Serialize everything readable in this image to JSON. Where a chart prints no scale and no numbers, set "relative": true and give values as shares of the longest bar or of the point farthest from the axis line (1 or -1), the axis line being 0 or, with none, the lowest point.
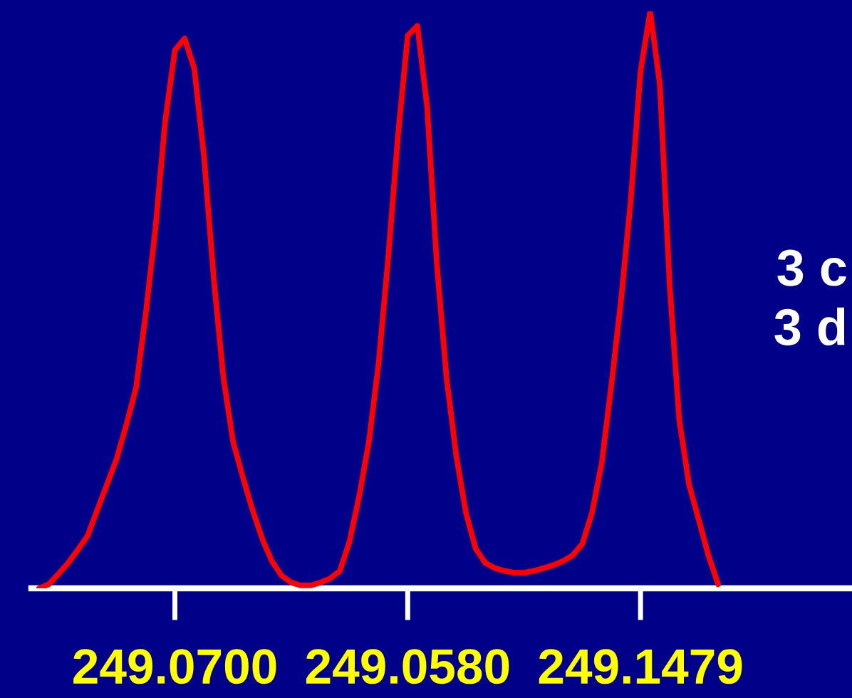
{
  "chart_data": {
    "type": "line",
    "relative": true,
    "categories": [
      null,
      null,
      null,
      null,
      null,
      null,
      null,
      null,
      null,
      null,
      null,
      null,
      null,
      null,
      "249.0700",
      null,
      null,
      null,
      null,
      null,
      null,
      null,
      null,
      null,
      null,
      null,
      null,
      null,
      null,
      null,
      null,
      null,
      null,
      null,
      null,
      null,
      null,
      null,
      "249.0580",
      null,
      null,
      null,
      null,
      null,
      null,
      null,
      null,
      null,
      null,
      null,
      null,
      null,
      null,
      null,
      null,
      null,
      null,
      null,
      null,
      null,
      null,
      null,
      "249.1479",
      null,
      null,
      null,
      null,
      null,
      null,
      null,
      null,
      null,
      null,
      null,
      null,
      null,
      null,
      null,
      null,
      null,
      null,
      null,
      null,
      null
    ],
    "series": [
      {
        "color": "#ff0000",
        "values": [
          0,
          0.007,
          0.025,
          0.044,
          0.067,
          0.091,
          0.136,
          0.18,
          0.225,
          0.284,
          0.348,
          0.477,
          0.625,
          0.81,
          0.933,
          0.953,
          0.901,
          0.748,
          0.538,
          0.365,
          0.254,
          0.193,
          0.136,
          0.086,
          0.047,
          0.022,
          0.01,
          0.005,
          0.005,
          0.01,
          0.017,
          0.03,
          0.081,
          0.16,
          0.254,
          0.39,
          0.575,
          0.785,
          0.958,
          0.975,
          0.835,
          0.563,
          0.365,
          0.23,
          0.131,
          0.069,
          0.044,
          0.035,
          0.03,
          0.027,
          0.027,
          0.03,
          0.035,
          0.04,
          0.047,
          0.057,
          0.077,
          0.131,
          0.217,
          0.353,
          0.501,
          0.674,
          0.896,
          1,
          0.872,
          0.526,
          0.291,
          0.18,
          0.119,
          0.057,
          0.007,
          null,
          null,
          null,
          null,
          null,
          null,
          null,
          null,
          null,
          null,
          null,
          null,
          null
        ]
      }
    ],
    "annotations": [
      "3 c",
      "3 d"
    ],
    "grid": false,
    "legend": false,
    "marker": "none",
    "line_style": "solid"
  }
}
